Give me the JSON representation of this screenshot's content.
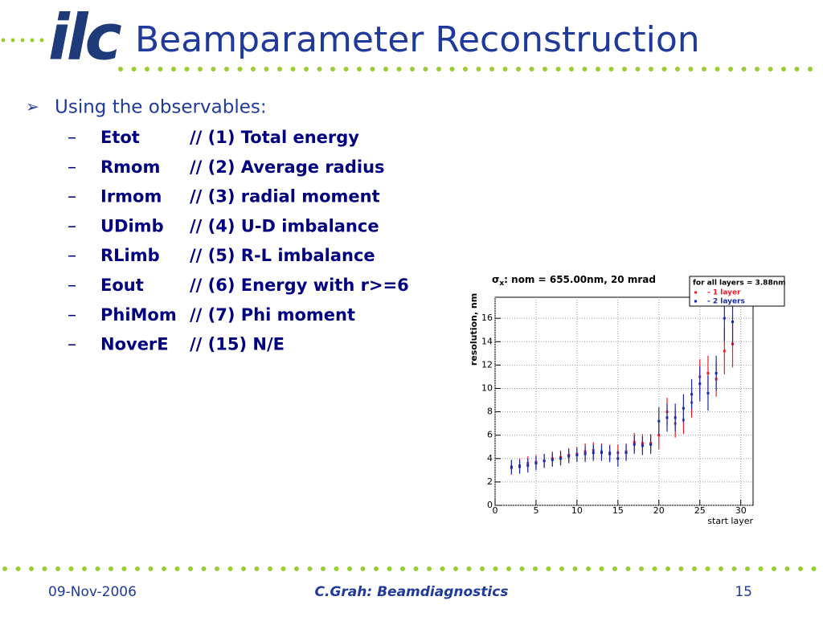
{
  "header": {
    "logo": "ilc",
    "title": "Beamparameter Reconstruction"
  },
  "bullet": "Using the observables:",
  "items": [
    {
      "name": "Etot",
      "comment": "// (1) Total energy"
    },
    {
      "name": "Rmom",
      "comment": "// (2) Average radius"
    },
    {
      "name": "Irmom",
      "comment": "// (3) radial moment"
    },
    {
      "name": "UDimb",
      "comment": "// (4) U-D imbalance"
    },
    {
      "name": "RLimb",
      "comment": "// (5) R-L imbalance"
    },
    {
      "name": "Eout",
      "comment": "// (6) Energy with r>=6"
    },
    {
      "name": "PhiMom",
      "comment": "// (7) Phi moment"
    },
    {
      "name": "NoverE",
      "comment": "// (15) N/E"
    }
  ],
  "footer": {
    "date": "09-Nov-2006",
    "center": "C.Grah: Beamdiagnostics",
    "page": "15"
  },
  "chart_data": {
    "type": "scatter",
    "title_parts": [
      "σ",
      "x",
      ": nom = 655.00nm, 20 mrad"
    ],
    "x_label": "start layer",
    "y_label": "resolution, nm",
    "legend_title": "for all layers = 3.88nm",
    "legend": "upper right",
    "x": [
      2,
      3,
      4,
      5,
      6,
      7,
      8,
      9,
      10,
      11,
      12,
      13,
      14,
      15,
      16,
      17,
      18,
      19,
      20,
      21,
      22,
      23,
      24,
      25,
      26,
      27,
      28,
      29
    ],
    "series": [
      {
        "name": "- 1 layer",
        "color": "#e8202a",
        "values": [
          3.2,
          3.4,
          3.6,
          3.7,
          3.8,
          4.0,
          4.1,
          4.3,
          4.4,
          4.6,
          4.7,
          4.6,
          4.5,
          4.5,
          4.6,
          5.4,
          5.3,
          5.3,
          6.0,
          8.0,
          7.0,
          7.3,
          8.8,
          11.0,
          11.3,
          10.8,
          13.2,
          13.8
        ],
        "errors": [
          0.6,
          0.6,
          0.6,
          0.6,
          0.6,
          0.6,
          0.6,
          0.6,
          0.6,
          0.7,
          0.7,
          0.7,
          0.7,
          0.7,
          0.7,
          0.8,
          0.8,
          0.8,
          1.2,
          1.2,
          1.2,
          1.2,
          1.3,
          1.5,
          1.5,
          1.5,
          2.0,
          2.0
        ]
      },
      {
        "name": "- 2 layers",
        "color": "#1a2aa8",
        "values": [
          3.3,
          3.3,
          3.4,
          3.6,
          3.8,
          3.9,
          4.0,
          4.2,
          4.3,
          4.4,
          4.5,
          4.5,
          4.4,
          4.0,
          4.5,
          5.2,
          5.1,
          5.2,
          7.2,
          7.5,
          7.5,
          8.3,
          9.5,
          10.4,
          9.6,
          11.3,
          16.0,
          15.7
        ],
        "errors": [
          0.6,
          0.6,
          0.6,
          0.6,
          0.6,
          0.6,
          0.6,
          0.6,
          0.6,
          0.7,
          0.7,
          0.7,
          0.7,
          0.7,
          0.7,
          0.8,
          0.8,
          0.8,
          1.2,
          1.2,
          1.2,
          1.2,
          1.3,
          1.5,
          1.5,
          1.5,
          2.0,
          2.0
        ]
      }
    ],
    "xlim": [
      0,
      31.5
    ],
    "ylim": [
      0,
      17.8
    ],
    "xticks": [
      0,
      5,
      10,
      15,
      20,
      25,
      30
    ],
    "yticks": [
      0,
      2,
      4,
      6,
      8,
      10,
      12,
      14,
      16
    ],
    "grid": true
  }
}
